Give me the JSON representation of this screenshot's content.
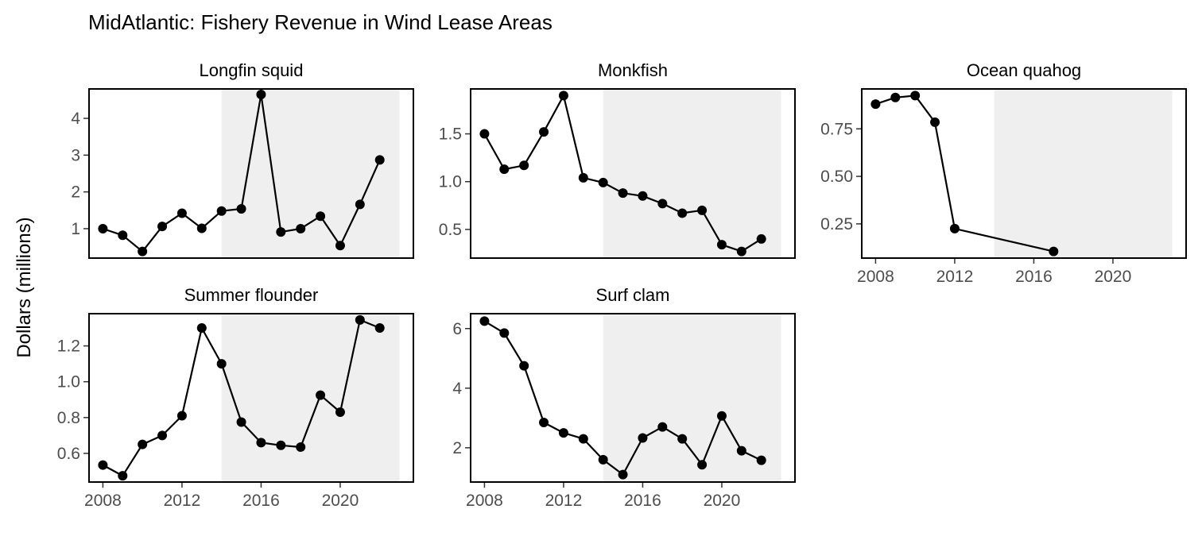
{
  "chart_data": {
    "type": "line",
    "title": "MidAtlantic: Fishery Revenue in Wind Lease Areas",
    "ylabel": "Dollars (millions)",
    "xlabel": "",
    "x_ticks": [
      "2008",
      "2012",
      "2016",
      "2020"
    ],
    "shaded_period": [
      2014,
      2023
    ],
    "grid": false,
    "facets": [
      {
        "name": "Longfin squid",
        "x": [
          2008,
          2009,
          2010,
          2011,
          2012,
          2013,
          2014,
          2015,
          2016,
          2017,
          2018,
          2019,
          2020,
          2021,
          2022
        ],
        "values": [
          1.0,
          0.82,
          0.38,
          1.06,
          1.42,
          1.01,
          1.48,
          1.54,
          4.65,
          0.91,
          1.0,
          1.34,
          0.54,
          1.66,
          2.87
        ],
        "ylim": [
          0.2,
          4.8
        ],
        "y_ticks": [
          1,
          2,
          3,
          4
        ],
        "y_tick_labels": [
          "1",
          "2",
          "3",
          "4"
        ],
        "show_x_axis": false
      },
      {
        "name": "Monkfish",
        "x": [
          2008,
          2009,
          2010,
          2011,
          2012,
          2013,
          2014,
          2015,
          2016,
          2017,
          2018,
          2019,
          2020,
          2021,
          2022
        ],
        "values": [
          1.5,
          1.13,
          1.17,
          1.52,
          1.9,
          1.04,
          0.99,
          0.88,
          0.85,
          0.77,
          0.67,
          0.7,
          0.34,
          0.27,
          0.4
        ],
        "ylim": [
          0.2,
          1.97
        ],
        "y_ticks": [
          0.5,
          1.0,
          1.5
        ],
        "y_tick_labels": [
          "0.5",
          "1.0",
          "1.5"
        ],
        "show_x_axis": false
      },
      {
        "name": "Ocean quahog",
        "x": [
          2008,
          2009,
          2010,
          2011,
          2012,
          2017
        ],
        "values": [
          0.88,
          0.915,
          0.925,
          0.785,
          0.225,
          0.105
        ],
        "ylim": [
          0.07,
          0.96
        ],
        "y_ticks": [
          0.25,
          0.5,
          0.75
        ],
        "y_tick_labels": [
          "0.25",
          "0.50",
          "0.75"
        ],
        "show_x_axis": true
      },
      {
        "name": "Summer flounder",
        "x": [
          2008,
          2009,
          2010,
          2011,
          2012,
          2013,
          2014,
          2015,
          2016,
          2017,
          2018,
          2019,
          2020,
          2021,
          2022
        ],
        "values": [
          0.535,
          0.475,
          0.65,
          0.7,
          0.81,
          1.3,
          1.1,
          0.775,
          0.66,
          0.645,
          0.635,
          0.925,
          0.83,
          1.345,
          1.3
        ],
        "ylim": [
          0.44,
          1.38
        ],
        "y_ticks": [
          0.6,
          0.8,
          1.0,
          1.2
        ],
        "y_tick_labels": [
          "0.6",
          "0.8",
          "1.0",
          "1.2"
        ],
        "show_x_axis": true
      },
      {
        "name": "Surf clam",
        "x": [
          2008,
          2009,
          2010,
          2011,
          2012,
          2013,
          2014,
          2015,
          2016,
          2017,
          2018,
          2019,
          2020,
          2021,
          2022
        ],
        "values": [
          6.25,
          5.85,
          4.75,
          2.85,
          2.5,
          2.3,
          1.6,
          1.1,
          2.33,
          2.7,
          2.3,
          1.43,
          3.07,
          1.9,
          1.58
        ],
        "ylim": [
          0.85,
          6.5
        ],
        "y_ticks": [
          2,
          4,
          6
        ],
        "y_tick_labels": [
          "2",
          "4",
          "6"
        ],
        "show_x_axis": true
      }
    ]
  }
}
